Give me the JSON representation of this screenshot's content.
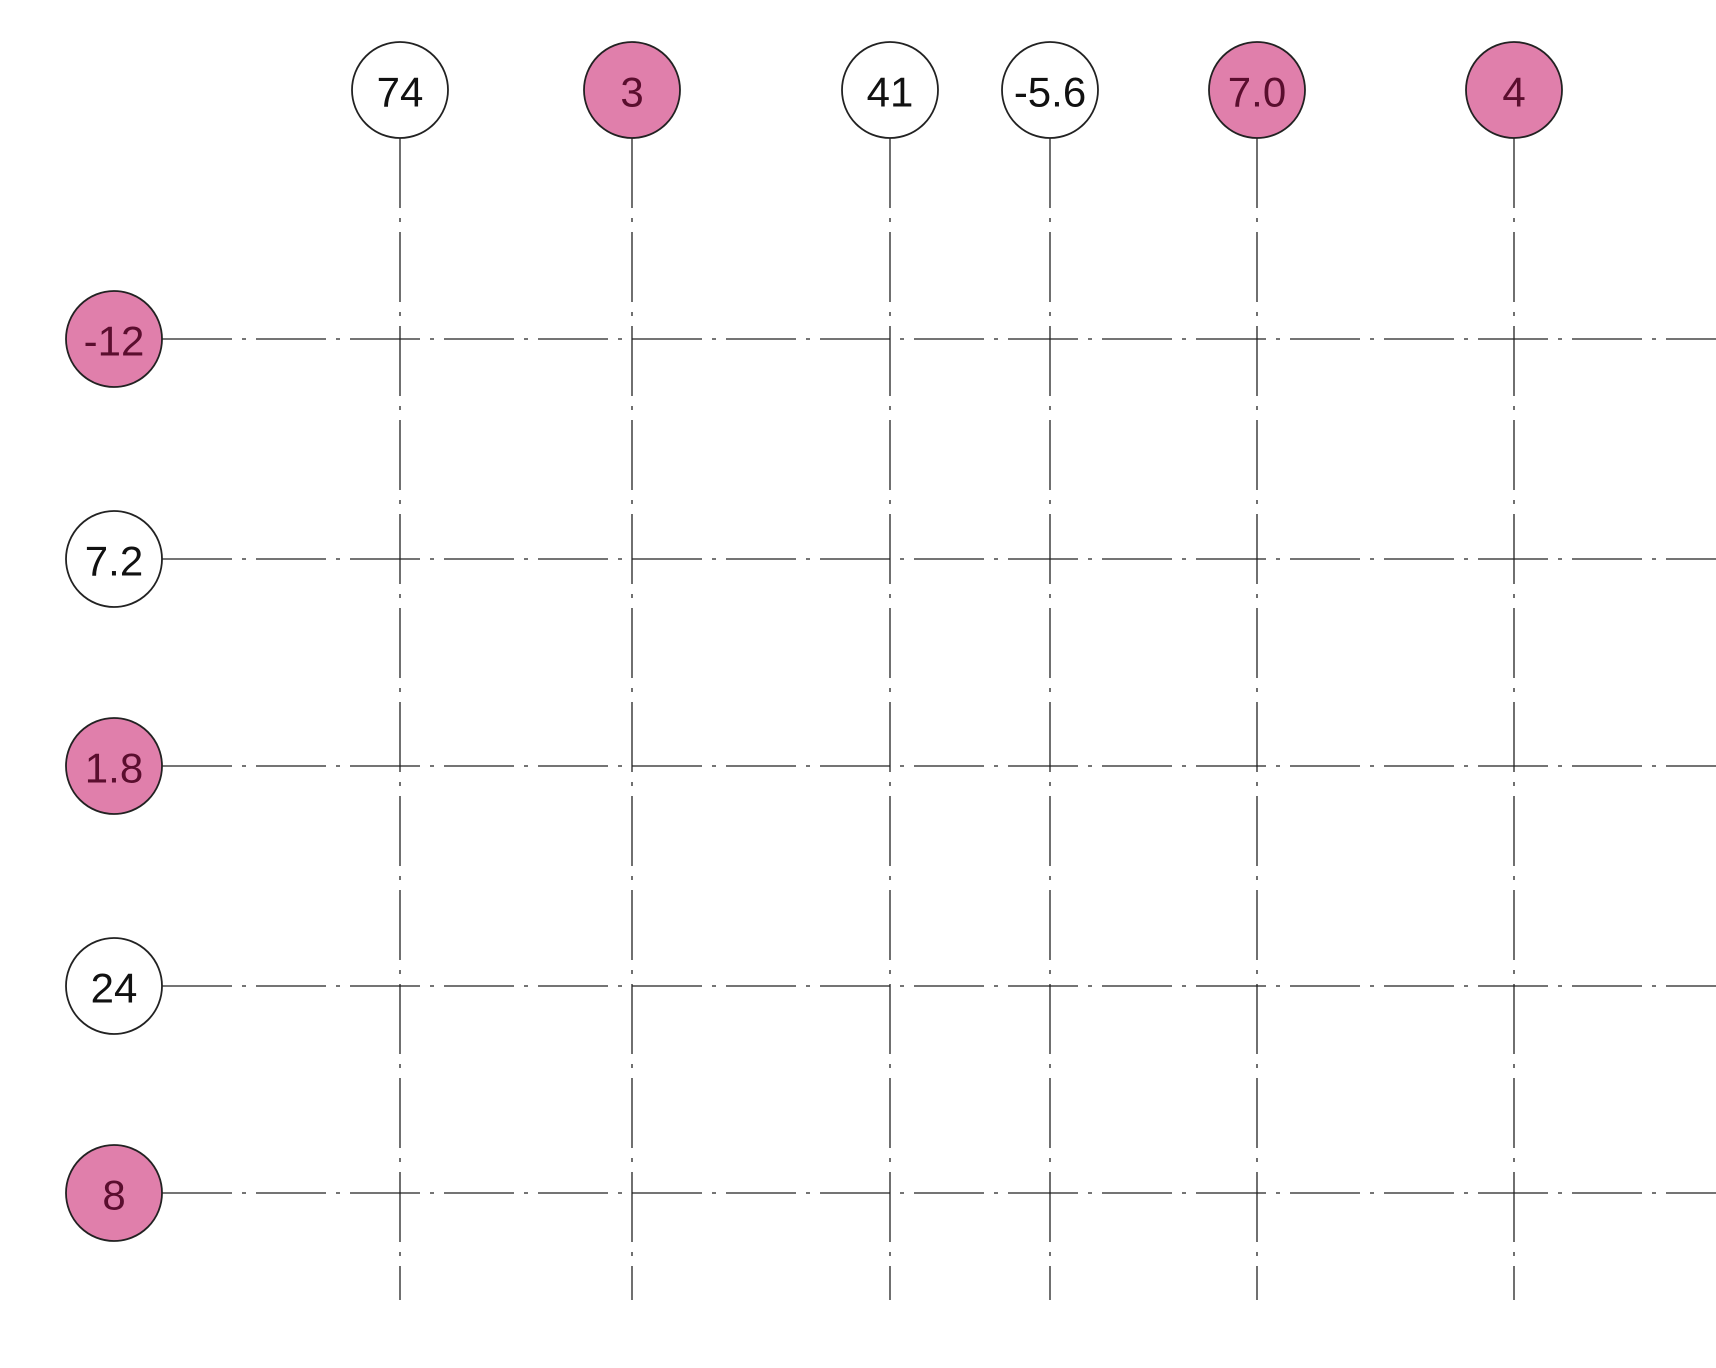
{
  "colors": {
    "highlight_fill": "#e07fab",
    "highlight_text": "#5a0e2e",
    "plain_fill": "#ffffff",
    "plain_text": "#111111",
    "line": "#222222"
  },
  "column_grids": [
    {
      "label": "74",
      "highlighted": false
    },
    {
      "label": "3",
      "highlighted": true
    },
    {
      "label": "41",
      "highlighted": false
    },
    {
      "label": "-5.6",
      "highlighted": false
    },
    {
      "label": "7.0",
      "highlighted": true
    },
    {
      "label": "4",
      "highlighted": true
    }
  ],
  "row_grids": [
    {
      "label": "-12",
      "highlighted": true
    },
    {
      "label": "7.2",
      "highlighted": false
    },
    {
      "label": "1.8",
      "highlighted": true
    },
    {
      "label": "24",
      "highlighted": false
    },
    {
      "label": "8",
      "highlighted": true
    }
  ]
}
